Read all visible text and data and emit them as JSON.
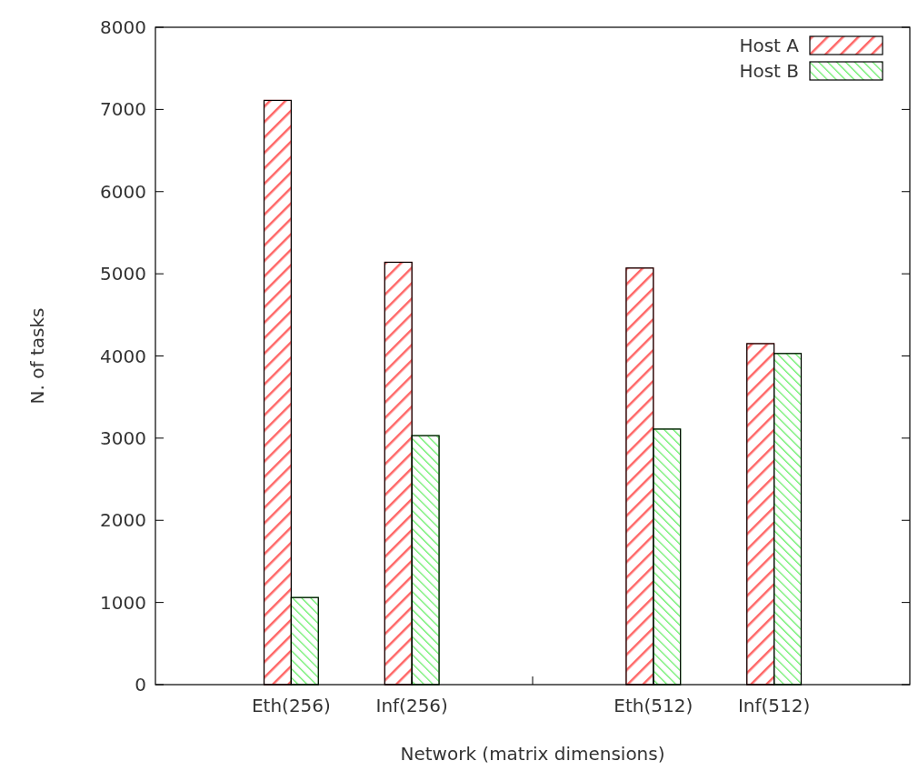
{
  "chart_data": {
    "type": "bar",
    "xlabel": "Network (matrix dimensions)",
    "ylabel": "N. of tasks",
    "categories": [
      "Eth(256)",
      "Inf(256)",
      null,
      "Eth(512)",
      "Inf(512)"
    ],
    "series": [
      {
        "name": "Host A",
        "color": "#ff6666",
        "values": [
          7110,
          5140,
          null,
          5070,
          4150
        ]
      },
      {
        "name": "Host B",
        "color": "#66ee66",
        "values": [
          1060,
          3030,
          null,
          3110,
          4030
        ]
      }
    ],
    "ylim": [
      0,
      8000
    ],
    "yticks": [
      0,
      1000,
      2000,
      3000,
      4000,
      5000,
      6000,
      7000,
      8000
    ],
    "legend": "top right",
    "grid": false
  }
}
